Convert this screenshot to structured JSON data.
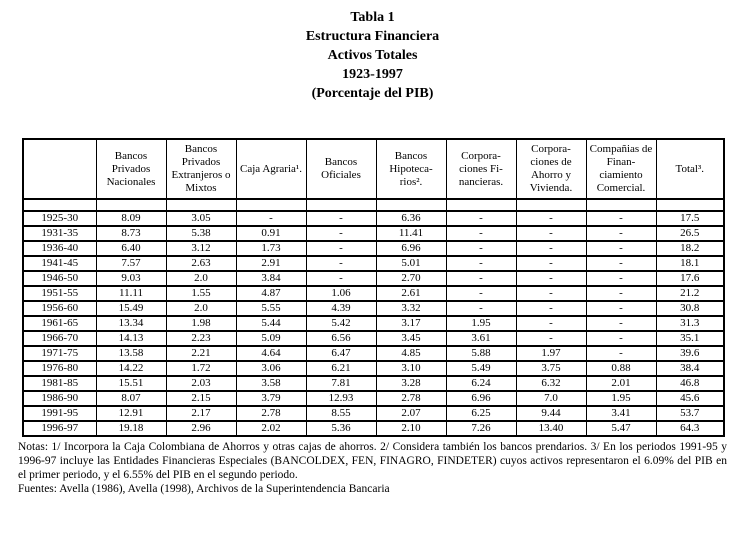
{
  "title": {
    "lines": [
      "Tabla 1",
      "Estructura Financiera",
      "Activos Totales",
      "1923-1997",
      "(Porcentaje del PIB)"
    ]
  },
  "table": {
    "columns": [
      "",
      "Bancos Privados Nacionales",
      "Bancos Privados Extranjeros o Mixtos",
      "Caja Agraria¹.",
      "Bancos Oficiales",
      "Bancos Hipoteca-rios².",
      "Corpora-ciones Fi-nancieras.",
      "Corpora-ciones de Ahorro y Vivienda.",
      "Compañias de Finan-ciamiento Comercial.",
      "Total³."
    ],
    "rows": [
      [
        "1925-30",
        "8.09",
        "3.05",
        "-",
        "-",
        "6.36",
        "-",
        "-",
        "-",
        "17.5"
      ],
      [
        "1931-35",
        "8.73",
        "5.38",
        "0.91",
        "-",
        "11.41",
        "-",
        "-",
        "-",
        "26.5"
      ],
      [
        "1936-40",
        "6.40",
        "3.12",
        "1.73",
        "-",
        "6.96",
        "-",
        "-",
        "-",
        "18.2"
      ],
      [
        "1941-45",
        "7.57",
        "2.63",
        "2.91",
        "-",
        "5.01",
        "-",
        "-",
        "-",
        "18.1"
      ],
      [
        "1946-50",
        "9.03",
        "2.0",
        "3.84",
        "-",
        "2.70",
        "-",
        "-",
        "-",
        "17.6"
      ],
      [
        "1951-55",
        "11.11",
        "1.55",
        "4.87",
        "1.06",
        "2.61",
        "-",
        "-",
        "-",
        "21.2"
      ],
      [
        "1956-60",
        "15.49",
        "2.0",
        "5.55",
        "4.39",
        "3.32",
        "-",
        "-",
        "-",
        "30.8"
      ],
      [
        "1961-65",
        "13.34",
        "1.98",
        "5.44",
        "5.42",
        "3.17",
        "1.95",
        "-",
        "-",
        "31.3"
      ],
      [
        "1966-70",
        "14.13",
        "2.23",
        "5.09",
        "6.56",
        "3.45",
        "3.61",
        "-",
        "-",
        "35.1"
      ],
      [
        "1971-75",
        "13.58",
        "2.21",
        "4.64",
        "6.47",
        "4.85",
        "5.88",
        "1.97",
        "-",
        "39.6"
      ],
      [
        "1976-80",
        "14.22",
        "1.72",
        "3.06",
        "6.21",
        "3.10",
        "5.49",
        "3.75",
        "0.88",
        "38.4"
      ],
      [
        "1981-85",
        "15.51",
        "2.03",
        "3.58",
        "7.81",
        "3.28",
        "6.24",
        "6.32",
        "2.01",
        "46.8"
      ],
      [
        "1986-90",
        "8.07",
        "2.15",
        "3.79",
        "12.93",
        "2.78",
        "6.96",
        "7.0",
        "1.95",
        "45.6"
      ],
      [
        "1991-95",
        "12.91",
        "2.17",
        "2.78",
        "8.55",
        "2.07",
        "6.25",
        "9.44",
        "3.41",
        "53.7"
      ],
      [
        "1996-97",
        "19.18",
        "2.96",
        "2.02",
        "5.36",
        "2.10",
        "7.26",
        "13.40",
        "5.47",
        "64.3"
      ]
    ]
  },
  "footnotes": {
    "notas": "Notas: 1/ Incorpora la Caja Colombiana de Ahorros y otras cajas de ahorros. 2/ Considera también los bancos prendarios. 3/ En los periodos 1991-95 y 1996-97 incluye las Entidades Financieras Especiales (BANCOLDEX, FEN, FINAGRO, FINDETER) cuyos activos representaron el 6.09% del PIB en el primer periodo, y el 6.55% del PIB en el segundo periodo.",
    "fuentes": "Fuentes: Avella (1986), Avella (1998), Archivos de la Superintendencia Bancaria"
  }
}
